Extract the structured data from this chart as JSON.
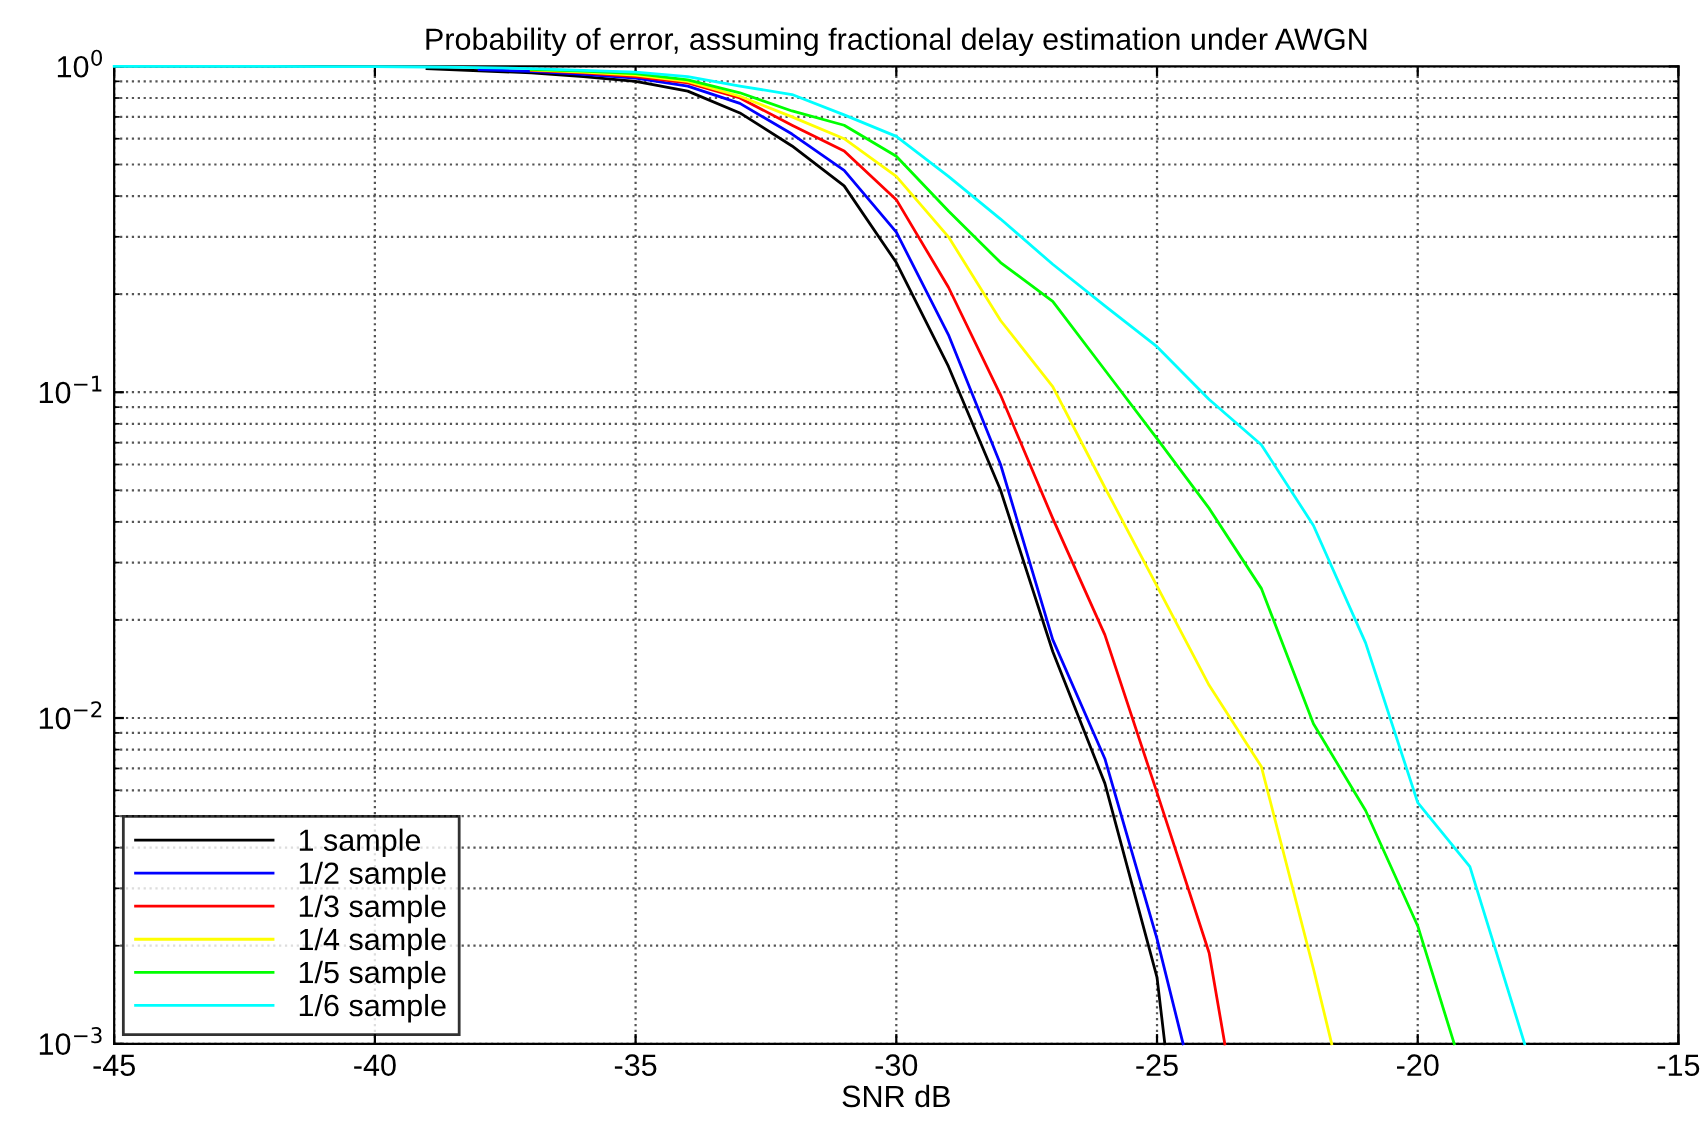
{
  "chart_data": {
    "type": "line",
    "title": "Probability of error, assuming fractional delay estimation under AWGN",
    "xlabel": "SNR dB",
    "xlim": [
      -45,
      -15
    ],
    "xticks": [
      -45,
      -40,
      -35,
      -30,
      -25,
      -20,
      -15
    ],
    "ylim": [
      0.001,
      1
    ],
    "yticks": [
      {
        "value": 0.001,
        "label": "10$^{−3}$"
      },
      {
        "value": 0.01,
        "label": "10$^{−2}$"
      },
      {
        "value": 0.1,
        "label": "10$^{−1}$"
      },
      {
        "value": 1,
        "label": "10$^{0}$"
      }
    ],
    "log": "y",
    "grid": true,
    "legend": "bottom left",
    "line_style": "solid",
    "marker": "none",
    "series": [
      {
        "name": "1 sample",
        "color": "#000000",
        "x": [
          -39,
          -38,
          -37,
          -36,
          -35,
          -34,
          -33,
          -32,
          -31,
          -30,
          -29,
          -28,
          -27,
          -26,
          -25,
          -24.85
        ],
        "values": [
          0.985,
          0.97,
          0.955,
          0.93,
          0.9,
          0.84,
          0.72,
          0.57,
          0.43,
          0.25,
          0.12,
          0.05,
          0.016,
          0.0063,
          0.0016,
          0.001
        ]
      },
      {
        "name": "1/2 sample",
        "color": "#0000ff",
        "x": [
          -38,
          -37,
          -36,
          -35,
          -34,
          -33,
          -32,
          -31,
          -30,
          -29,
          -28,
          -27,
          -26,
          -25,
          -24.5
        ],
        "values": [
          0.978,
          0.965,
          0.945,
          0.92,
          0.87,
          0.77,
          0.62,
          0.48,
          0.31,
          0.15,
          0.06,
          0.0174,
          0.0075,
          0.0021,
          0.001
        ]
      },
      {
        "name": "1/3 sample",
        "color": "#ff0000",
        "x": [
          -37,
          -36,
          -35,
          -34,
          -33,
          -32,
          -31,
          -30,
          -29,
          -28,
          -27,
          -26,
          -25,
          -24,
          -23.7
        ],
        "values": [
          0.972,
          0.955,
          0.93,
          0.89,
          0.8,
          0.66,
          0.55,
          0.39,
          0.21,
          0.098,
          0.041,
          0.018,
          0.0059,
          0.0019,
          0.001
        ]
      },
      {
        "name": "1/4 sample",
        "color": "#ffff00",
        "x": [
          -37,
          -36,
          -35,
          -34,
          -33,
          -32,
          -31,
          -30,
          -29,
          -28,
          -27,
          -26,
          -25,
          -24,
          -23,
          -22,
          -21.65
        ],
        "values": [
          0.976,
          0.96,
          0.94,
          0.9,
          0.81,
          0.7,
          0.6,
          0.46,
          0.3,
          0.166,
          0.104,
          0.051,
          0.0254,
          0.0126,
          0.0071,
          0.0017,
          0.001
        ]
      },
      {
        "name": "1/5 sample",
        "color": "#00ff00",
        "x": [
          -37,
          -36,
          -35,
          -34,
          -33,
          -32,
          -31,
          -30,
          -29,
          -28,
          -27,
          -26,
          -25,
          -24,
          -23,
          -22,
          -21,
          -20,
          -19.3
        ],
        "values": [
          0.98,
          0.967,
          0.95,
          0.91,
          0.83,
          0.73,
          0.66,
          0.53,
          0.36,
          0.25,
          0.19,
          0.117,
          0.072,
          0.044,
          0.025,
          0.0096,
          0.0052,
          0.0023,
          0.001
        ]
      },
      {
        "name": "1/6 sample",
        "color": "#00ffff",
        "x": [
          -45,
          -44,
          -43,
          -42,
          -41,
          -40,
          -39,
          -38,
          -37,
          -36,
          -35,
          -34,
          -33,
          -32,
          -31,
          -30,
          -29,
          -28,
          -27,
          -26,
          -25,
          -24,
          -23,
          -22,
          -21,
          -20,
          -19,
          -17.95
        ],
        "values": [
          1,
          1,
          1,
          1,
          0.999,
          0.998,
          0.996,
          0.992,
          0.985,
          0.973,
          0.96,
          0.93,
          0.87,
          0.82,
          0.71,
          0.61,
          0.46,
          0.34,
          0.247,
          0.184,
          0.138,
          0.095,
          0.069,
          0.039,
          0.017,
          0.0055,
          0.0035,
          0.001
        ]
      }
    ]
  }
}
